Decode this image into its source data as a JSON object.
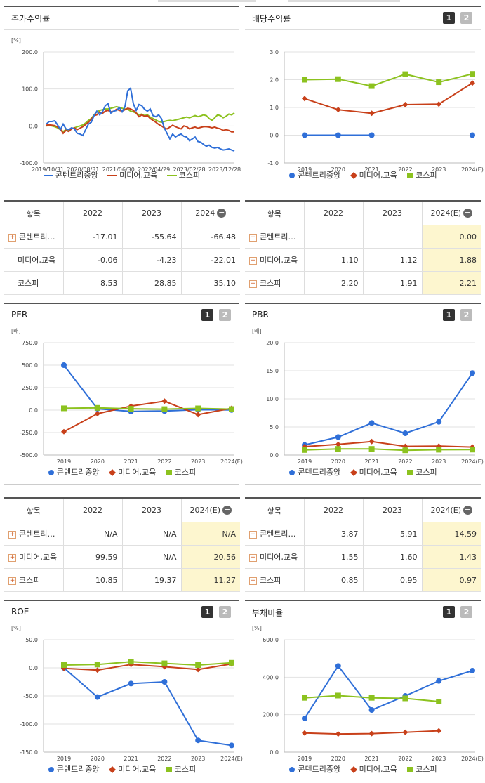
{
  "colors": {
    "blue": "#2f6fd8",
    "red": "#c8401a",
    "green": "#8cc21f"
  },
  "legend": {
    "s1": "콘텐트리중앙",
    "s2": "미디어,교육",
    "s3": "코스피"
  },
  "panels": {
    "p1": {
      "title": "주가수익률",
      "unit": "[%]"
    },
    "p2": {
      "title": "배당수익률",
      "unit": "",
      "btn1": "1",
      "btn2": "2"
    },
    "p3": {
      "title": "PER",
      "unit": "[배]",
      "btn1": "1",
      "btn2": "2"
    },
    "p4": {
      "title": "PBR",
      "unit": "[배]",
      "btn1": "1",
      "btn2": "2"
    },
    "p5": {
      "title": "ROE",
      "unit": "[%]",
      "btn1": "1",
      "btn2": "2"
    },
    "p6": {
      "title": "부채비율",
      "unit": "[%]",
      "btn1": "1",
      "btn2": "2"
    }
  },
  "chart_data": [
    {
      "id": "p1",
      "type": "line",
      "title": "주가수익률",
      "x_ticks": [
        "2019/10/31",
        "2020/08/31",
        "2021/06/30",
        "2022/04/29",
        "2023/02/28",
        "2023/12/28"
      ],
      "y_ticks": [
        "200.0",
        "100.0",
        "0.0",
        "-100.0"
      ],
      "ylim": [
        -100,
        200
      ],
      "series": [
        {
          "name": "콘텐트리중앙",
          "color": "#2f6fd8",
          "values": [
            5,
            12,
            12,
            14,
            3,
            -10,
            5,
            -8,
            -10,
            -5,
            -8,
            -20,
            -22,
            -26,
            -10,
            5,
            10,
            28,
            40,
            30,
            38,
            55,
            60,
            35,
            40,
            42,
            50,
            38,
            52,
            95,
            102,
            60,
            42,
            58,
            55,
            45,
            40,
            46,
            28,
            25,
            30,
            20,
            -5,
            -20,
            -35,
            -22,
            -30,
            -25,
            -22,
            -28,
            -30,
            -40,
            -35,
            -30,
            -42,
            -44,
            -50,
            -55,
            -52,
            -58,
            -60,
            -58,
            -62,
            -65,
            -64,
            -62,
            -65,
            -68
          ]
        },
        {
          "name": "미디어,교육",
          "color": "#c8401a",
          "values": [
            2,
            3,
            2,
            1,
            -3,
            -8,
            -20,
            -12,
            -15,
            -8,
            -5,
            -10,
            -6,
            -2,
            4,
            10,
            18,
            28,
            30,
            38,
            34,
            40,
            42,
            38,
            40,
            45,
            42,
            40,
            44,
            48,
            46,
            42,
            35,
            25,
            30,
            26,
            28,
            20,
            15,
            10,
            4,
            0,
            -5,
            -8,
            -3,
            2,
            -2,
            -5,
            -8,
            0,
            -2,
            -8,
            -5,
            -3,
            -6,
            -4,
            -2,
            -2,
            -3,
            -5,
            -3,
            -6,
            -8,
            -12,
            -10,
            -12,
            -16,
            -16
          ]
        },
        {
          "name": "코스피",
          "color": "#8cc21f",
          "values": [
            0,
            1,
            0,
            -2,
            -5,
            -10,
            -15,
            -10,
            -12,
            -8,
            -5,
            -2,
            0,
            3,
            8,
            15,
            20,
            30,
            38,
            42,
            44,
            46,
            46,
            48,
            50,
            52,
            50,
            48,
            46,
            45,
            40,
            38,
            35,
            30,
            32,
            28,
            30,
            24,
            20,
            16,
            12,
            10,
            12,
            14,
            15,
            14,
            16,
            18,
            20,
            22,
            24,
            22,
            25,
            28,
            25,
            27,
            30,
            28,
            20,
            15,
            22,
            30,
            28,
            22,
            26,
            32,
            30,
            35
          ]
        }
      ]
    },
    {
      "id": "p2",
      "type": "line",
      "title": "배당수익률",
      "categories": [
        "2019",
        "2020",
        "2021",
        "2022",
        "2023",
        "2024(E)"
      ],
      "y_ticks": [
        "3.0",
        "2.0",
        "1.0",
        "0.0",
        "-1.0"
      ],
      "ylim": [
        -1,
        3
      ],
      "series": [
        {
          "name": "콘텐트리중앙",
          "color": "#2f6fd8",
          "marker": "circle",
          "values": [
            0.0,
            0.0,
            0.0,
            null,
            null,
            0.0
          ]
        },
        {
          "name": "미디어,교육",
          "color": "#c8401a",
          "marker": "diamond",
          "values": [
            1.32,
            0.92,
            0.79,
            1.1,
            1.12,
            1.88
          ]
        },
        {
          "name": "코스피",
          "color": "#8cc21f",
          "marker": "square",
          "values": [
            2.0,
            2.02,
            1.77,
            2.2,
            1.91,
            2.21
          ]
        }
      ]
    },
    {
      "id": "p3",
      "type": "line",
      "title": "PER",
      "categories": [
        "2019",
        "2020",
        "2021",
        "2022",
        "2023",
        "2024(E)"
      ],
      "y_ticks": [
        "750.0",
        "500.0",
        "250.0",
        "0.0",
        "-250.0",
        "-500.0"
      ],
      "ylim": [
        -500,
        750
      ],
      "series": [
        {
          "name": "콘텐트리중앙",
          "color": "#2f6fd8",
          "marker": "circle",
          "values": [
            500,
            15,
            -15,
            -10,
            5,
            2
          ]
        },
        {
          "name": "미디어,교육",
          "color": "#c8401a",
          "marker": "diamond",
          "values": [
            -240,
            -40,
            45,
            99.59,
            -50,
            20.56
          ]
        },
        {
          "name": "코스피",
          "color": "#8cc21f",
          "marker": "square",
          "values": [
            20,
            25,
            15,
            10.85,
            19.37,
            11.27
          ]
        }
      ]
    },
    {
      "id": "p4",
      "type": "line",
      "title": "PBR",
      "categories": [
        "2019",
        "2020",
        "2021",
        "2022",
        "2023",
        "2024(E)"
      ],
      "y_ticks": [
        "20.0",
        "15.0",
        "10.0",
        "5.0",
        "0.0"
      ],
      "ylim": [
        0,
        20
      ],
      "series": [
        {
          "name": "콘텐트리중앙",
          "color": "#2f6fd8",
          "marker": "circle",
          "values": [
            1.8,
            3.2,
            5.7,
            3.87,
            5.91,
            14.59
          ]
        },
        {
          "name": "미디어,교육",
          "color": "#c8401a",
          "marker": "diamond",
          "values": [
            1.5,
            1.9,
            2.4,
            1.55,
            1.6,
            1.43
          ]
        },
        {
          "name": "코스피",
          "color": "#8cc21f",
          "marker": "square",
          "values": [
            0.9,
            1.1,
            1.1,
            0.85,
            0.95,
            0.97
          ]
        }
      ]
    },
    {
      "id": "p5",
      "type": "line",
      "title": "ROE",
      "categories": [
        "2019",
        "2020",
        "2021",
        "2022",
        "2023",
        "2024(E)"
      ],
      "y_ticks": [
        "50.0",
        "0.0",
        "-50.0",
        "-100.0",
        "-150.0"
      ],
      "ylim": [
        -150,
        50
      ],
      "series": [
        {
          "name": "콘텐트리중앙",
          "color": "#2f6fd8",
          "marker": "circle",
          "values": [
            0,
            -52,
            -28,
            -25,
            -129,
            -138
          ]
        },
        {
          "name": "미디어,교육",
          "color": "#c8401a",
          "marker": "diamond",
          "values": [
            -1,
            -4,
            6,
            2,
            -3,
            7
          ]
        },
        {
          "name": "코스피",
          "color": "#8cc21f",
          "marker": "square",
          "values": [
            5,
            6,
            11,
            8,
            5,
            9
          ]
        }
      ]
    },
    {
      "id": "p6",
      "type": "line",
      "title": "부채비율",
      "categories": [
        "2019",
        "2020",
        "2021",
        "2022",
        "2023",
        "2024(E)"
      ],
      "y_ticks": [
        "600.0",
        "400.0",
        "200.0",
        "0.0"
      ],
      "ylim": [
        0,
        600
      ],
      "series": [
        {
          "name": "콘텐트리중앙",
          "color": "#2f6fd8",
          "marker": "circle",
          "values": [
            180,
            460,
            225,
            300,
            380,
            435
          ]
        },
        {
          "name": "미디어,교육",
          "color": "#c8401a",
          "marker": "diamond",
          "values": [
            102,
            97,
            99,
            106,
            114,
            null
          ]
        },
        {
          "name": "코스피",
          "color": "#8cc21f",
          "marker": "square",
          "values": [
            290,
            302,
            290,
            287,
            270,
            null
          ]
        }
      ]
    }
  ],
  "tables": {
    "t1": {
      "headers": [
        "항목",
        "2022",
        "2023",
        "2024"
      ],
      "rows": [
        {
          "name": "콘텐트리…",
          "v": [
            "-17.01",
            "-55.64",
            "-66.48"
          ]
        },
        {
          "name": "미디어,교육",
          "v": [
            "-0.06",
            "-4.23",
            "-22.01"
          ]
        },
        {
          "name": "코스피",
          "v": [
            "8.53",
            "28.85",
            "35.10"
          ]
        }
      ]
    },
    "t2": {
      "headers": [
        "항목",
        "2022",
        "2023",
        "2024(E)"
      ],
      "rows": [
        {
          "name": "콘텐트리…",
          "v": [
            "",
            "",
            "0.00"
          ]
        },
        {
          "name": "미디어,교육",
          "v": [
            "1.10",
            "1.12",
            "1.88"
          ]
        },
        {
          "name": "코스피",
          "v": [
            "2.20",
            "1.91",
            "2.21"
          ]
        }
      ]
    },
    "t3": {
      "headers": [
        "항목",
        "2022",
        "2023",
        "2024(E)"
      ],
      "rows": [
        {
          "name": "콘텐트리…",
          "v": [
            "N/A",
            "N/A",
            "N/A"
          ]
        },
        {
          "name": "미디어,교육",
          "v": [
            "99.59",
            "N/A",
            "20.56"
          ]
        },
        {
          "name": "코스피",
          "v": [
            "10.85",
            "19.37",
            "11.27"
          ]
        }
      ]
    },
    "t4": {
      "headers": [
        "항목",
        "2022",
        "2023",
        "2024(E)"
      ],
      "rows": [
        {
          "name": "콘텐트리…",
          "v": [
            "3.87",
            "5.91",
            "14.59"
          ]
        },
        {
          "name": "미디어,교육",
          "v": [
            "1.55",
            "1.60",
            "1.43"
          ]
        },
        {
          "name": "코스피",
          "v": [
            "0.85",
            "0.95",
            "0.97"
          ]
        }
      ]
    }
  }
}
